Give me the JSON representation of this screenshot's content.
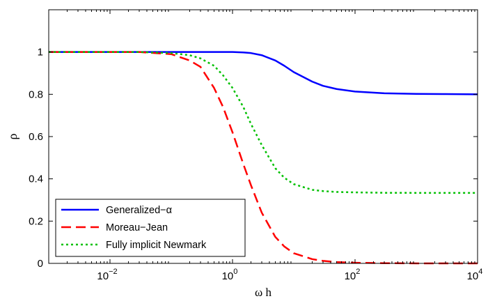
{
  "chart_data": {
    "type": "line",
    "title": "",
    "xlabel": "ω h",
    "ylabel": "ρ",
    "xscale": "log",
    "xlim": [
      0.001,
      10000
    ],
    "ylim": [
      0,
      1.2
    ],
    "grid": false,
    "legend_position": "bottom-left",
    "x_ticks": [
      0.01,
      1,
      100,
      10000
    ],
    "x_tick_labels": [
      {
        "base": "10",
        "exp": "−2"
      },
      {
        "base": "10",
        "exp": "0"
      },
      {
        "base": "10",
        "exp": "2"
      },
      {
        "base": "10",
        "exp": "4"
      }
    ],
    "y_ticks": [
      0,
      0.2,
      0.4,
      0.6,
      0.8,
      1
    ],
    "y_tick_labels": [
      "0",
      "0.2",
      "0.4",
      "0.6",
      "0.8",
      "1"
    ],
    "x": [
      0.001,
      0.003,
      0.01,
      0.03,
      0.1,
      0.2,
      0.3,
      0.5,
      0.7,
      1,
      1.5,
      2,
      3,
      5,
      7,
      10,
      20,
      30,
      50,
      100,
      300,
      1000,
      3000,
      10000
    ],
    "series": [
      {
        "name": "Generalized−α",
        "color": "#0000ff",
        "dash": "solid",
        "values": [
          1,
          1,
          1,
          1,
          1,
          1,
          1,
          1,
          1,
          1,
          0.998,
          0.995,
          0.985,
          0.96,
          0.935,
          0.905,
          0.86,
          0.84,
          0.825,
          0.813,
          0.805,
          0.802,
          0.801,
          0.8
        ]
      },
      {
        "name": "Moreau−Jean",
        "color": "#ff0000",
        "dash": "dashed",
        "values": [
          1,
          1,
          1,
          1,
          0.99,
          0.96,
          0.93,
          0.83,
          0.74,
          0.62,
          0.47,
          0.37,
          0.24,
          0.125,
          0.08,
          0.048,
          0.02,
          0.012,
          0.006,
          0.003,
          0.001,
          0,
          0,
          0
        ]
      },
      {
        "name": "Fully implicit Newmark",
        "color": "#00c000",
        "dash": "dotted",
        "values": [
          1,
          1,
          1,
          1,
          0.995,
          0.985,
          0.97,
          0.935,
          0.89,
          0.83,
          0.74,
          0.66,
          0.56,
          0.45,
          0.405,
          0.375,
          0.348,
          0.342,
          0.338,
          0.336,
          0.334,
          0.3335,
          0.3334,
          0.3333
        ]
      }
    ]
  }
}
